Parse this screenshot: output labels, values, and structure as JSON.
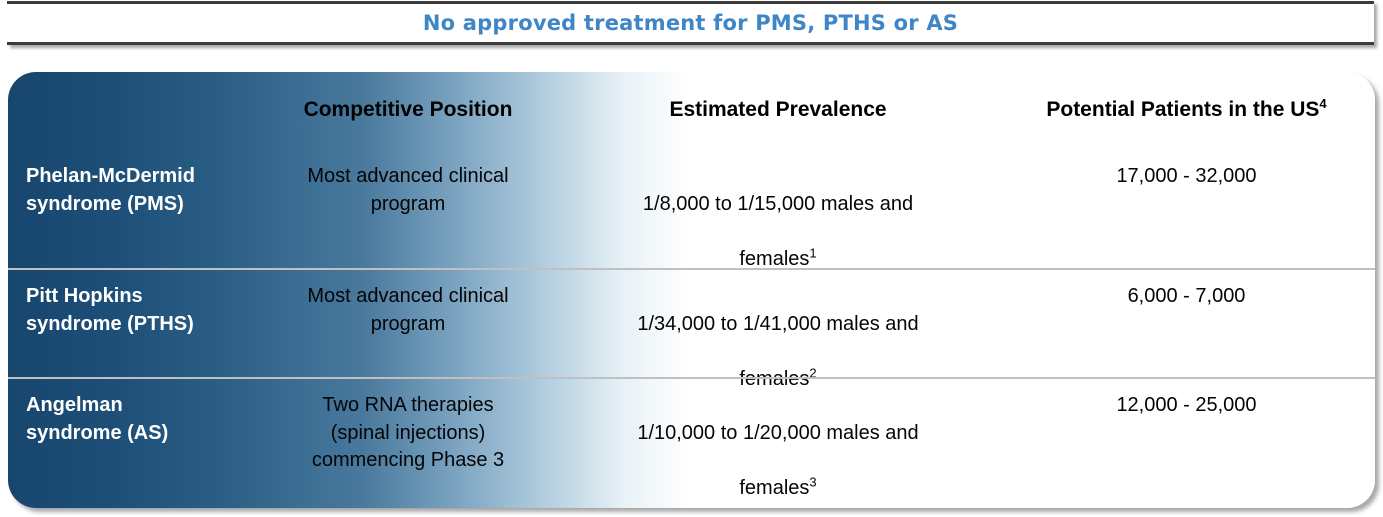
{
  "title": "No approved treatment for PMS, PTHS or AS",
  "colors": {
    "title_blue": "#3e86c7",
    "table_navy": "#17466e",
    "banner_line_gray": "#3c3c3c",
    "row_divider_gray": "#c0c0c0",
    "body_text": "#000000",
    "row_label_text": "#ffffff"
  },
  "table": {
    "headers": [
      {
        "label": ""
      },
      {
        "label": "Competitive Position"
      },
      {
        "label": "Estimated Prevalence"
      },
      {
        "label": "Potential Patients in the US",
        "sup": "4"
      }
    ],
    "rows": [
      {
        "name_lines": [
          "Phelan-McDermid",
          "syndrome (PMS)"
        ],
        "position_lines": [
          "Most advanced clinical",
          "program"
        ],
        "prevalence": {
          "line1": "1/8,000 to 1/15,000 males and",
          "line2": "females",
          "sup": "1"
        },
        "patients": "17,000 - 32,000"
      },
      {
        "name_lines": [
          "Pitt Hopkins",
          "syndrome (PTHS)"
        ],
        "position_lines": [
          "Most advanced clinical",
          "program"
        ],
        "prevalence": {
          "line1": "1/34,000 to 1/41,000 males and",
          "line2": "females",
          "sup": "2"
        },
        "patients": "6,000 - 7,000"
      },
      {
        "name_lines": [
          "Angelman",
          "syndrome (AS)"
        ],
        "position_lines": [
          "Two RNA therapies",
          "(spinal injections)",
          "commencing Phase 3"
        ],
        "prevalence": {
          "line1": "1/10,000 to 1/20,000 males and",
          "line2": "females",
          "sup": "3"
        },
        "patients": "12,000 - 25,000"
      }
    ]
  }
}
